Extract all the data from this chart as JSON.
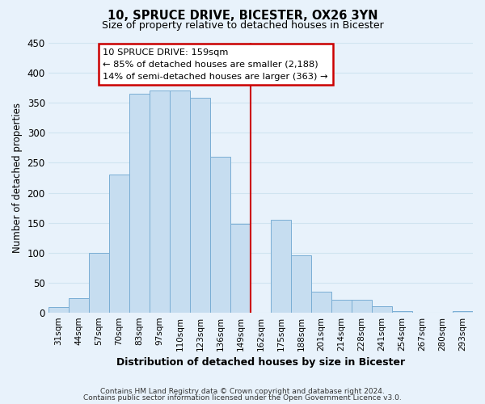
{
  "title": "10, SPRUCE DRIVE, BICESTER, OX26 3YN",
  "subtitle": "Size of property relative to detached houses in Bicester",
  "xlabel": "Distribution of detached houses by size in Bicester",
  "ylabel": "Number of detached properties",
  "footer_line1": "Contains HM Land Registry data © Crown copyright and database right 2024.",
  "footer_line2": "Contains public sector information licensed under the Open Government Licence v3.0.",
  "bar_labels": [
    "31sqm",
    "44sqm",
    "57sqm",
    "70sqm",
    "83sqm",
    "97sqm",
    "110sqm",
    "123sqm",
    "136sqm",
    "149sqm",
    "162sqm",
    "175sqm",
    "188sqm",
    "201sqm",
    "214sqm",
    "228sqm",
    "241sqm",
    "254sqm",
    "267sqm",
    "280sqm",
    "293sqm"
  ],
  "bar_values": [
    10,
    25,
    100,
    230,
    365,
    370,
    370,
    358,
    260,
    148,
    0,
    155,
    96,
    35,
    22,
    22,
    11,
    3,
    1,
    0,
    3
  ],
  "bar_color": "#c6ddf0",
  "bar_edge_color": "#7aaed4",
  "reference_line_label": "10 SPRUCE DRIVE: 159sqm",
  "annotation_line1": "← 85% of detached houses are smaller (2,188)",
  "annotation_line2": "14% of semi-detached houses are larger (363) →",
  "annotation_box_facecolor": "#ffffff",
  "annotation_box_edgecolor": "#cc0000",
  "ref_line_color": "#cc0000",
  "ylim": [
    0,
    450
  ],
  "yticks": [
    0,
    50,
    100,
    150,
    200,
    250,
    300,
    350,
    400,
    450
  ],
  "background_color": "#e8f2fb",
  "grid_color": "#d0e4f0",
  "ref_line_index": 10
}
